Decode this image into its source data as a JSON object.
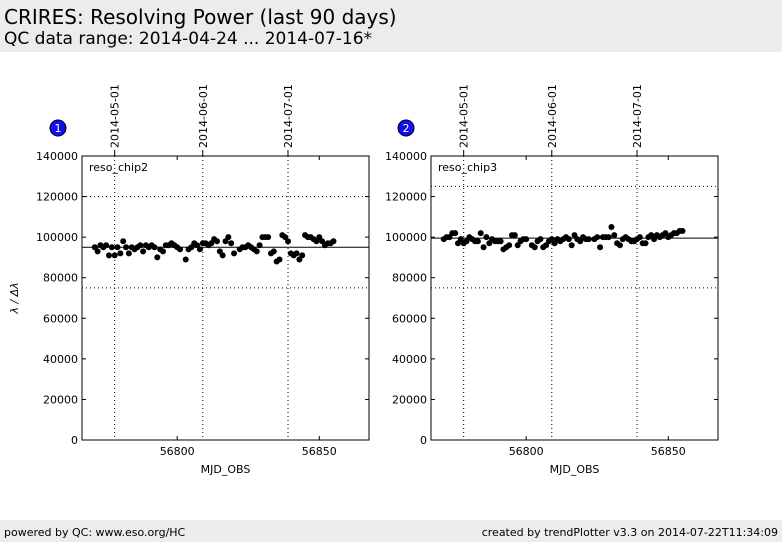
{
  "header": {
    "title": "CRIRES: Resolving Power (last 90 days)",
    "subtitle": "QC data range: 2014-04-24 ... 2014-07-16*"
  },
  "footer": {
    "left": "powered by QC: www.eso.org/HC",
    "right": "created by trendPlotter v3.3 on 2014-07-22T11:34:09"
  },
  "chart_data": [
    {
      "type": "scatter",
      "panel_number": "1",
      "label": "reso_chip2",
      "xlabel": "MJD_OBS",
      "ylabel": "λ / Δλ",
      "xlim": [
        56766.5,
        56867.5
      ],
      "ylim": [
        0,
        140000
      ],
      "xticks": [
        56800,
        56850
      ],
      "yticks": [
        0,
        20000,
        40000,
        60000,
        80000,
        100000,
        120000,
        140000
      ],
      "date_markers": [
        {
          "x": 56778,
          "label": "2014-05-01"
        },
        {
          "x": 56809,
          "label": "2014-06-01"
        },
        {
          "x": 56839,
          "label": "2014-07-01"
        }
      ],
      "reference_line": 95000,
      "limit_lines": [
        75000,
        120000
      ],
      "series": [
        {
          "x": [
            56771,
            56772,
            56773,
            56774,
            56775,
            56776,
            56777,
            56778,
            56779,
            56780,
            56781,
            56782,
            56783,
            56784,
            56785,
            56786,
            56787,
            56788,
            56789,
            56790,
            56791,
            56792,
            56793,
            56794,
            56795,
            56796,
            56797,
            56798,
            56799,
            56800,
            56801,
            56803,
            56804,
            56805,
            56806,
            56807,
            56808,
            56809,
            56810,
            56811,
            56812,
            56813,
            56814,
            56815,
            56816,
            56817,
            56818,
            56819,
            56820,
            56822,
            56823,
            56824,
            56825,
            56826,
            56827,
            56828,
            56829,
            56830,
            56831,
            56832,
            56833,
            56834,
            56835,
            56836,
            56837,
            56838,
            56839,
            56840,
            56841,
            56842,
            56843,
            56844,
            56845,
            56846,
            56847,
            56848,
            56849,
            56850,
            56851,
            56852,
            56853,
            56854,
            56855
          ],
          "y": [
            95000,
            93000,
            96000,
            95000,
            96000,
            91000,
            95000,
            91000,
            95000,
            92000,
            98000,
            95000,
            92000,
            95000,
            94000,
            95000,
            96000,
            93000,
            96000,
            95000,
            96000,
            95000,
            90000,
            94000,
            93000,
            96000,
            96000,
            97000,
            96000,
            95000,
            94000,
            89000,
            94000,
            95000,
            97000,
            96000,
            94000,
            97000,
            97000,
            96000,
            97000,
            99000,
            98000,
            93000,
            91000,
            98000,
            100000,
            97000,
            92000,
            94000,
            95000,
            95000,
            96000,
            95000,
            94000,
            93000,
            96000,
            100000,
            100000,
            100000,
            92000,
            93000,
            88000,
            89000,
            101000,
            100000,
            98000,
            92000,
            91000,
            92000,
            89000,
            91000,
            101000,
            100000,
            100000,
            99000,
            98000,
            100000,
            98000,
            96000,
            97000,
            97000,
            98000
          ]
        }
      ]
    },
    {
      "type": "scatter",
      "panel_number": "2",
      "label": "reso_chip3",
      "xlabel": "MJD_OBS",
      "ylabel": "",
      "xlim": [
        56766.5,
        56867.5
      ],
      "ylim": [
        0,
        140000
      ],
      "xticks": [
        56800,
        56850
      ],
      "yticks": [
        0,
        20000,
        40000,
        60000,
        80000,
        100000,
        120000,
        140000
      ],
      "date_markers": [
        {
          "x": 56778,
          "label": "2014-05-01"
        },
        {
          "x": 56809,
          "label": "2014-06-01"
        },
        {
          "x": 56839,
          "label": "2014-07-01"
        }
      ],
      "reference_line": 99500,
      "limit_lines": [
        75000,
        125000
      ],
      "series": [
        {
          "x": [
            56771,
            56772,
            56773,
            56774,
            56775,
            56776,
            56777,
            56778,
            56779,
            56780,
            56781,
            56782,
            56783,
            56784,
            56785,
            56786,
            56787,
            56788,
            56789,
            56790,
            56791,
            56792,
            56793,
            56794,
            56795,
            56796,
            56797,
            56798,
            56799,
            56800,
            56802,
            56803,
            56804,
            56805,
            56806,
            56807,
            56808,
            56809,
            56810,
            56811,
            56812,
            56813,
            56814,
            56815,
            56816,
            56817,
            56818,
            56819,
            56820,
            56821,
            56822,
            56824,
            56825,
            56826,
            56827,
            56828,
            56829,
            56830,
            56831,
            56832,
            56833,
            56834,
            56835,
            56836,
            56837,
            56838,
            56839,
            56840,
            56841,
            56842,
            56843,
            56844,
            56845,
            56846,
            56847,
            56848,
            56849,
            56850,
            56851,
            56852,
            56853,
            56854,
            56855
          ],
          "y": [
            99000,
            100000,
            100000,
            102000,
            102000,
            97000,
            99000,
            97000,
            98000,
            100000,
            99000,
            98000,
            98000,
            102000,
            95000,
            100000,
            97000,
            99000,
            98000,
            98000,
            98000,
            94000,
            95000,
            96000,
            101000,
            101000,
            96000,
            98000,
            99000,
            99000,
            96000,
            95000,
            98000,
            99000,
            95000,
            96000,
            98000,
            99000,
            97000,
            99000,
            98000,
            99000,
            100000,
            99000,
            96000,
            101000,
            99000,
            98000,
            100000,
            99000,
            99000,
            99000,
            100000,
            95000,
            100000,
            100000,
            100000,
            105000,
            101000,
            97000,
            96000,
            99000,
            100000,
            99000,
            98000,
            98000,
            99000,
            100000,
            97000,
            97000,
            100000,
            101000,
            99000,
            101000,
            100000,
            101000,
            102000,
            100000,
            101000,
            102000,
            102000,
            103000,
            103000
          ]
        }
      ]
    }
  ]
}
